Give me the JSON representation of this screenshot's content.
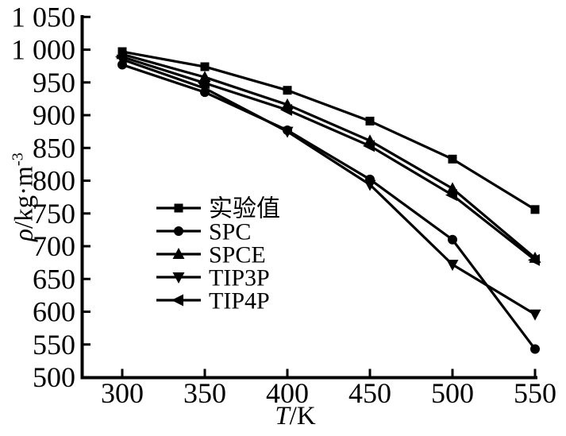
{
  "figure": {
    "background": "#ffffff",
    "ink_color": "#000000"
  },
  "labels": {
    "y_symbol": "ρ",
    "y_unit": "/kg·m",
    "y_exponent": "-3",
    "x_symbol": "T",
    "x_unit": "/K"
  },
  "axes": {
    "x_ticks": [
      300,
      350,
      400,
      450,
      500,
      550
    ],
    "x_tick_labels": [
      "300",
      "350",
      "400",
      "450",
      "500",
      "550"
    ],
    "y_ticks": [
      500,
      550,
      600,
      650,
      700,
      750,
      800,
      850,
      900,
      950,
      1000,
      1050
    ],
    "y_tick_labels": [
      "500",
      "550",
      "600",
      "650",
      "700",
      "750",
      "800",
      "850",
      "900",
      "950",
      "1 000",
      "1 050"
    ]
  },
  "chart_data": {
    "type": "line",
    "title": "",
    "xlabel": "T/K",
    "ylabel": "ρ/kg·m⁻³",
    "xlim": [
      300,
      550
    ],
    "ylim": [
      500,
      1050
    ],
    "grid": false,
    "legend_position": "inside-center-left",
    "x": [
      300,
      350,
      400,
      450,
      500,
      550
    ],
    "series": [
      {
        "name": "实验值",
        "marker": "square",
        "values": [
          997,
          974,
          938,
          891,
          833,
          756
        ]
      },
      {
        "name": "SPC",
        "marker": "circle",
        "values": [
          977,
          935,
          877,
          802,
          710,
          543
        ]
      },
      {
        "name": "SPCE",
        "marker": "triangle-up",
        "values": [
          993,
          958,
          916,
          861,
          788,
          682
        ]
      },
      {
        "name": "TIP3P",
        "marker": "triangle-down",
        "values": [
          985,
          941,
          875,
          794,
          672,
          596
        ]
      },
      {
        "name": "TIP4P",
        "marker": "triangle-left",
        "values": [
          989,
          949,
          908,
          853,
          778,
          679
        ]
      }
    ]
  }
}
